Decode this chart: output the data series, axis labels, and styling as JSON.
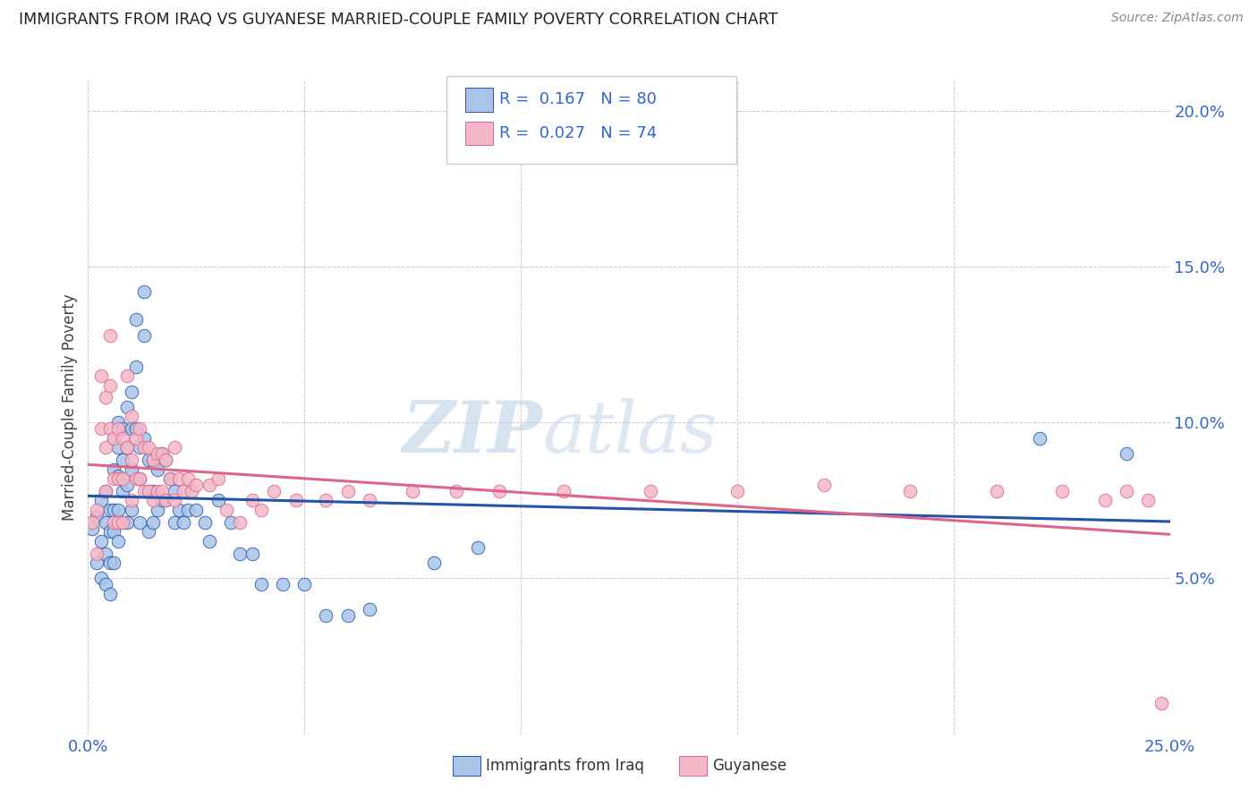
{
  "title": "IMMIGRANTS FROM IRAQ VS GUYANESE MARRIED-COUPLE FAMILY POVERTY CORRELATION CHART",
  "source": "Source: ZipAtlas.com",
  "ylabel": "Married-Couple Family Poverty",
  "right_yticks": [
    0.05,
    0.1,
    0.15,
    0.2
  ],
  "right_yticklabels": [
    "5.0%",
    "10.0%",
    "15.0%",
    "20.0%"
  ],
  "xlim": [
    0.0,
    0.25
  ],
  "ylim": [
    0.0,
    0.21
  ],
  "legend_r_n_color": "#3366cc",
  "series1_color": "#aac4e8",
  "series2_color": "#f4b8c8",
  "trendline1_color": "#2255aa",
  "trendline2_color": "#dd6688",
  "watermark_zip": "ZIP",
  "watermark_atlas": "atlas",
  "iraq_label": "Immigrants from Iraq",
  "guyanese_label": "Guyanese",
  "iraq_R": "0.167",
  "iraq_N": "80",
  "guyanese_R": "0.027",
  "guyanese_N": "74",
  "iraq_x": [
    0.001,
    0.002,
    0.002,
    0.003,
    0.003,
    0.003,
    0.004,
    0.004,
    0.004,
    0.004,
    0.005,
    0.005,
    0.005,
    0.005,
    0.006,
    0.006,
    0.006,
    0.006,
    0.006,
    0.007,
    0.007,
    0.007,
    0.007,
    0.007,
    0.008,
    0.008,
    0.008,
    0.008,
    0.009,
    0.009,
    0.009,
    0.009,
    0.01,
    0.01,
    0.01,
    0.01,
    0.011,
    0.011,
    0.011,
    0.012,
    0.012,
    0.012,
    0.013,
    0.013,
    0.013,
    0.014,
    0.014,
    0.014,
    0.015,
    0.015,
    0.015,
    0.016,
    0.016,
    0.017,
    0.017,
    0.018,
    0.018,
    0.019,
    0.02,
    0.02,
    0.021,
    0.022,
    0.023,
    0.025,
    0.027,
    0.028,
    0.03,
    0.033,
    0.035,
    0.038,
    0.04,
    0.045,
    0.05,
    0.055,
    0.06,
    0.065,
    0.08,
    0.09,
    0.22,
    0.24
  ],
  "iraq_y": [
    0.066,
    0.055,
    0.07,
    0.075,
    0.062,
    0.05,
    0.078,
    0.068,
    0.058,
    0.048,
    0.072,
    0.065,
    0.055,
    0.045,
    0.095,
    0.085,
    0.072,
    0.065,
    0.055,
    0.1,
    0.092,
    0.083,
    0.072,
    0.062,
    0.098,
    0.088,
    0.078,
    0.068,
    0.105,
    0.092,
    0.08,
    0.068,
    0.11,
    0.098,
    0.085,
    0.072,
    0.133,
    0.118,
    0.098,
    0.092,
    0.082,
    0.068,
    0.142,
    0.128,
    0.095,
    0.088,
    0.078,
    0.065,
    0.088,
    0.078,
    0.068,
    0.085,
    0.072,
    0.09,
    0.075,
    0.088,
    0.075,
    0.082,
    0.078,
    0.068,
    0.072,
    0.068,
    0.072,
    0.072,
    0.068,
    0.062,
    0.075,
    0.068,
    0.058,
    0.058,
    0.048,
    0.048,
    0.048,
    0.038,
    0.038,
    0.04,
    0.055,
    0.06,
    0.095,
    0.09
  ],
  "guyanese_x": [
    0.001,
    0.002,
    0.002,
    0.003,
    0.003,
    0.004,
    0.004,
    0.004,
    0.005,
    0.005,
    0.005,
    0.006,
    0.006,
    0.006,
    0.007,
    0.007,
    0.007,
    0.008,
    0.008,
    0.008,
    0.009,
    0.009,
    0.01,
    0.01,
    0.01,
    0.011,
    0.011,
    0.012,
    0.012,
    0.013,
    0.013,
    0.014,
    0.014,
    0.015,
    0.015,
    0.016,
    0.016,
    0.017,
    0.017,
    0.018,
    0.018,
    0.019,
    0.02,
    0.02,
    0.021,
    0.022,
    0.023,
    0.024,
    0.025,
    0.028,
    0.03,
    0.032,
    0.035,
    0.038,
    0.04,
    0.043,
    0.048,
    0.055,
    0.06,
    0.065,
    0.075,
    0.085,
    0.095,
    0.11,
    0.13,
    0.15,
    0.17,
    0.19,
    0.21,
    0.225,
    0.235,
    0.24,
    0.245,
    0.248
  ],
  "guyanese_y": [
    0.068,
    0.072,
    0.058,
    0.115,
    0.098,
    0.108,
    0.092,
    0.078,
    0.128,
    0.112,
    0.098,
    0.095,
    0.082,
    0.068,
    0.098,
    0.082,
    0.068,
    0.095,
    0.082,
    0.068,
    0.115,
    0.092,
    0.102,
    0.088,
    0.075,
    0.095,
    0.082,
    0.098,
    0.082,
    0.092,
    0.078,
    0.092,
    0.078,
    0.088,
    0.075,
    0.09,
    0.078,
    0.09,
    0.078,
    0.088,
    0.075,
    0.082,
    0.092,
    0.075,
    0.082,
    0.078,
    0.082,
    0.078,
    0.08,
    0.08,
    0.082,
    0.072,
    0.068,
    0.075,
    0.072,
    0.078,
    0.075,
    0.075,
    0.078,
    0.075,
    0.078,
    0.078,
    0.078,
    0.078,
    0.078,
    0.078,
    0.08,
    0.078,
    0.078,
    0.078,
    0.075,
    0.078,
    0.075,
    0.01
  ]
}
